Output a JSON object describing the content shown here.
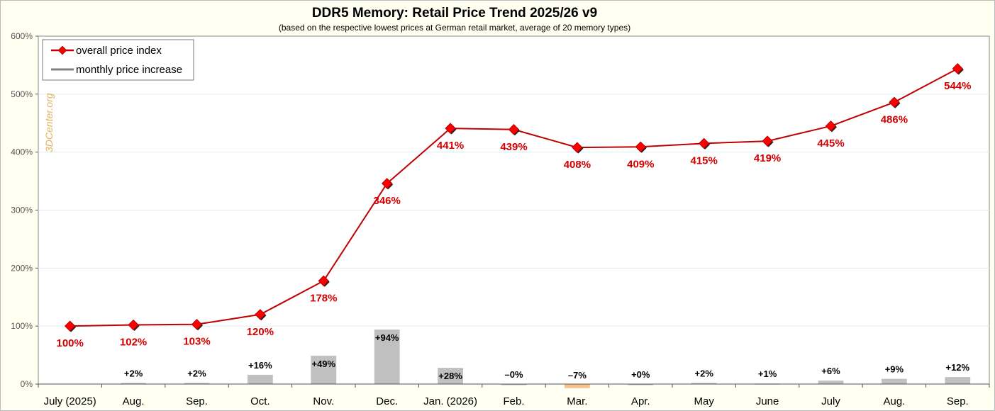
{
  "chart_data": {
    "type": "line",
    "title": "DDR5 Memory: Retail Price Trend 2025/26 v9",
    "subtitle": "(based on the respective lowest prices at German retail market, average of 20 memory types)",
    "watermark": "3DCenter.org",
    "categories": [
      "July (2025)",
      "Aug.",
      "Sep.",
      "Oct.",
      "Nov.",
      "Dec.",
      "Jan. (2026)",
      "Feb.",
      "Mar.",
      "Apr.",
      "May",
      "June",
      "July",
      "Aug.",
      "Sep."
    ],
    "y_ticks": [
      "0%",
      "100%",
      "200%",
      "300%",
      "400%",
      "500%",
      "600%"
    ],
    "ylim": [
      0,
      600
    ],
    "grid": true,
    "legend_position": "top-left",
    "series": [
      {
        "name": "overall price index",
        "type": "line",
        "color": "#c00000",
        "marker_color": "#ff0000",
        "values": [
          100,
          102,
          103,
          120,
          178,
          346,
          441,
          439,
          408,
          409,
          415,
          419,
          445,
          486,
          544
        ],
        "labels": [
          "100%",
          "102%",
          "103%",
          "120%",
          "178%",
          "346%",
          "441%",
          "439%",
          "408%",
          "409%",
          "415%",
          "419%",
          "445%",
          "486%",
          "544%"
        ]
      },
      {
        "name": "monthly price increase",
        "type": "bar",
        "color": "#c0c0c0",
        "negative_color": "#f5c38c",
        "values": [
          null,
          2,
          2,
          16,
          49,
          94,
          28,
          0,
          -7,
          0,
          2,
          1,
          6,
          9,
          12
        ],
        "labels": [
          "",
          "+2%",
          "+2%",
          "+16%",
          "+49%",
          "+94%",
          "+28%",
          "–0%",
          "–7%",
          "+0%",
          "+2%",
          "+1%",
          "+6%",
          "+9%",
          "+12%"
        ]
      }
    ]
  }
}
